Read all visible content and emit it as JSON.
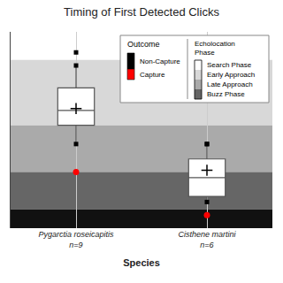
{
  "chart_data": {
    "type": "box",
    "title": "Timing of First Detected Clicks",
    "xlabel": "Species",
    "categories": [
      "Pygarctia roseicapitis\nn=9",
      "Cisthene martini\nn=6"
    ],
    "boxes": [
      {
        "q1": 3.0,
        "median": 4.2,
        "q3": 5.0,
        "mean": 4.1,
        "whisker_low": 1.8,
        "whisker_high": 6.0,
        "outlier": 7.5,
        "flier_top": 1.1
      },
      {
        "q1": 6.8,
        "median": 7.8,
        "q3": 8.8,
        "mean": 7.4,
        "whisker_low": 6.0,
        "whisker_high": 9.1,
        "outlier": 9.8,
        "flier_top": 6.0
      }
    ],
    "color": "#555555",
    "ylim": [
      10.5,
      0.0
    ],
    "tick_labels": "x",
    "grid": true,
    "bands": [
      {
        "from": 0.0,
        "to": 1.5,
        "color": "#ffffff"
      },
      {
        "from": 1.5,
        "to": 5.0,
        "color": "#d8d8d8"
      },
      {
        "from": 5.0,
        "to": 7.5,
        "color": "#aaaaaa"
      },
      {
        "from": 7.5,
        "to": 9.5,
        "color": "#666666"
      },
      {
        "from": 9.5,
        "to": 10.5,
        "color": "#111111"
      }
    ],
    "outcomes": {
      "title": "Outcome",
      "labels": [
        "Non-Capture",
        "Capture"
      ],
      "colors": [
        "#000000",
        "#ff0000"
      ]
    },
    "phases": {
      "title": "Echolocation\nPhase",
      "labels": [
        "Search Phase",
        "Early Approach",
        "Late Approach",
        "Buzz Phase"
      ],
      "colors": [
        "#ffffff",
        "#d8d8d8",
        "#aaaaaa",
        "#666666"
      ]
    }
  }
}
